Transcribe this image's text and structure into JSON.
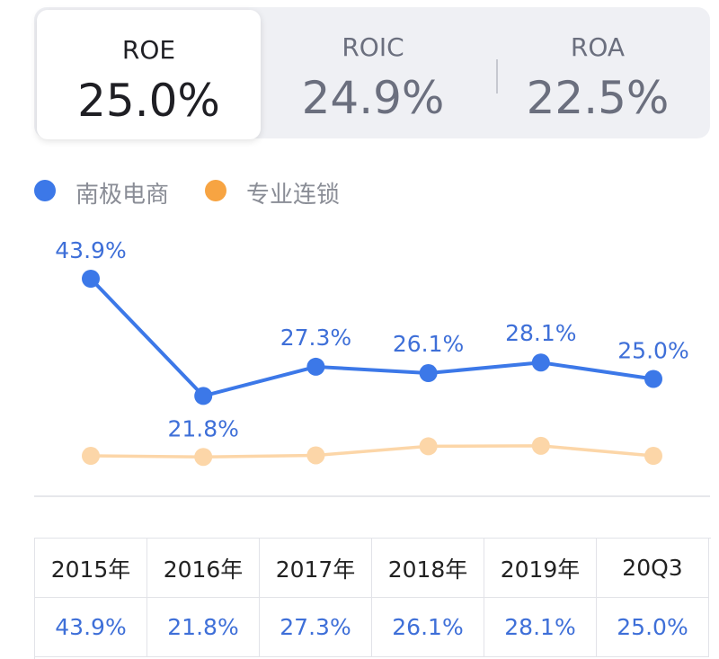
{
  "tabs": [
    {
      "label": "ROE",
      "value": "25.0%",
      "active": true
    },
    {
      "label": "ROIC",
      "value": "24.9%",
      "active": false
    },
    {
      "label": "ROA",
      "value": "22.5%",
      "active": false
    }
  ],
  "colors": {
    "series1": "#3c78e8",
    "series2": "#fcd6a8",
    "label": "#3e6fd8"
  },
  "chart_data": {
    "type": "line",
    "title": "",
    "xlabel": "",
    "ylabel": "",
    "categories": [
      "2015年",
      "2016年",
      "2017年",
      "2018年",
      "2019年",
      "20Q3"
    ],
    "ylim": [
      0,
      45
    ],
    "grid": false,
    "legend": "top-left",
    "series": [
      {
        "name": "南极电商",
        "values": [
          43.9,
          21.8,
          27.3,
          26.1,
          28.1,
          25.0
        ],
        "labels": [
          "43.9%",
          "21.8%",
          "27.3%",
          "26.1%",
          "28.1%",
          "25.0%"
        ]
      },
      {
        "name": "专业连锁",
        "values": [
          10.5,
          10.3,
          10.6,
          12.3,
          12.4,
          10.5
        ]
      }
    ]
  },
  "table": {
    "headers": [
      "2015年",
      "2016年",
      "2017年",
      "2018年",
      "2019年",
      "20Q3"
    ],
    "values": [
      "43.9%",
      "21.8%",
      "27.3%",
      "26.1%",
      "28.1%",
      "25.0%"
    ]
  }
}
